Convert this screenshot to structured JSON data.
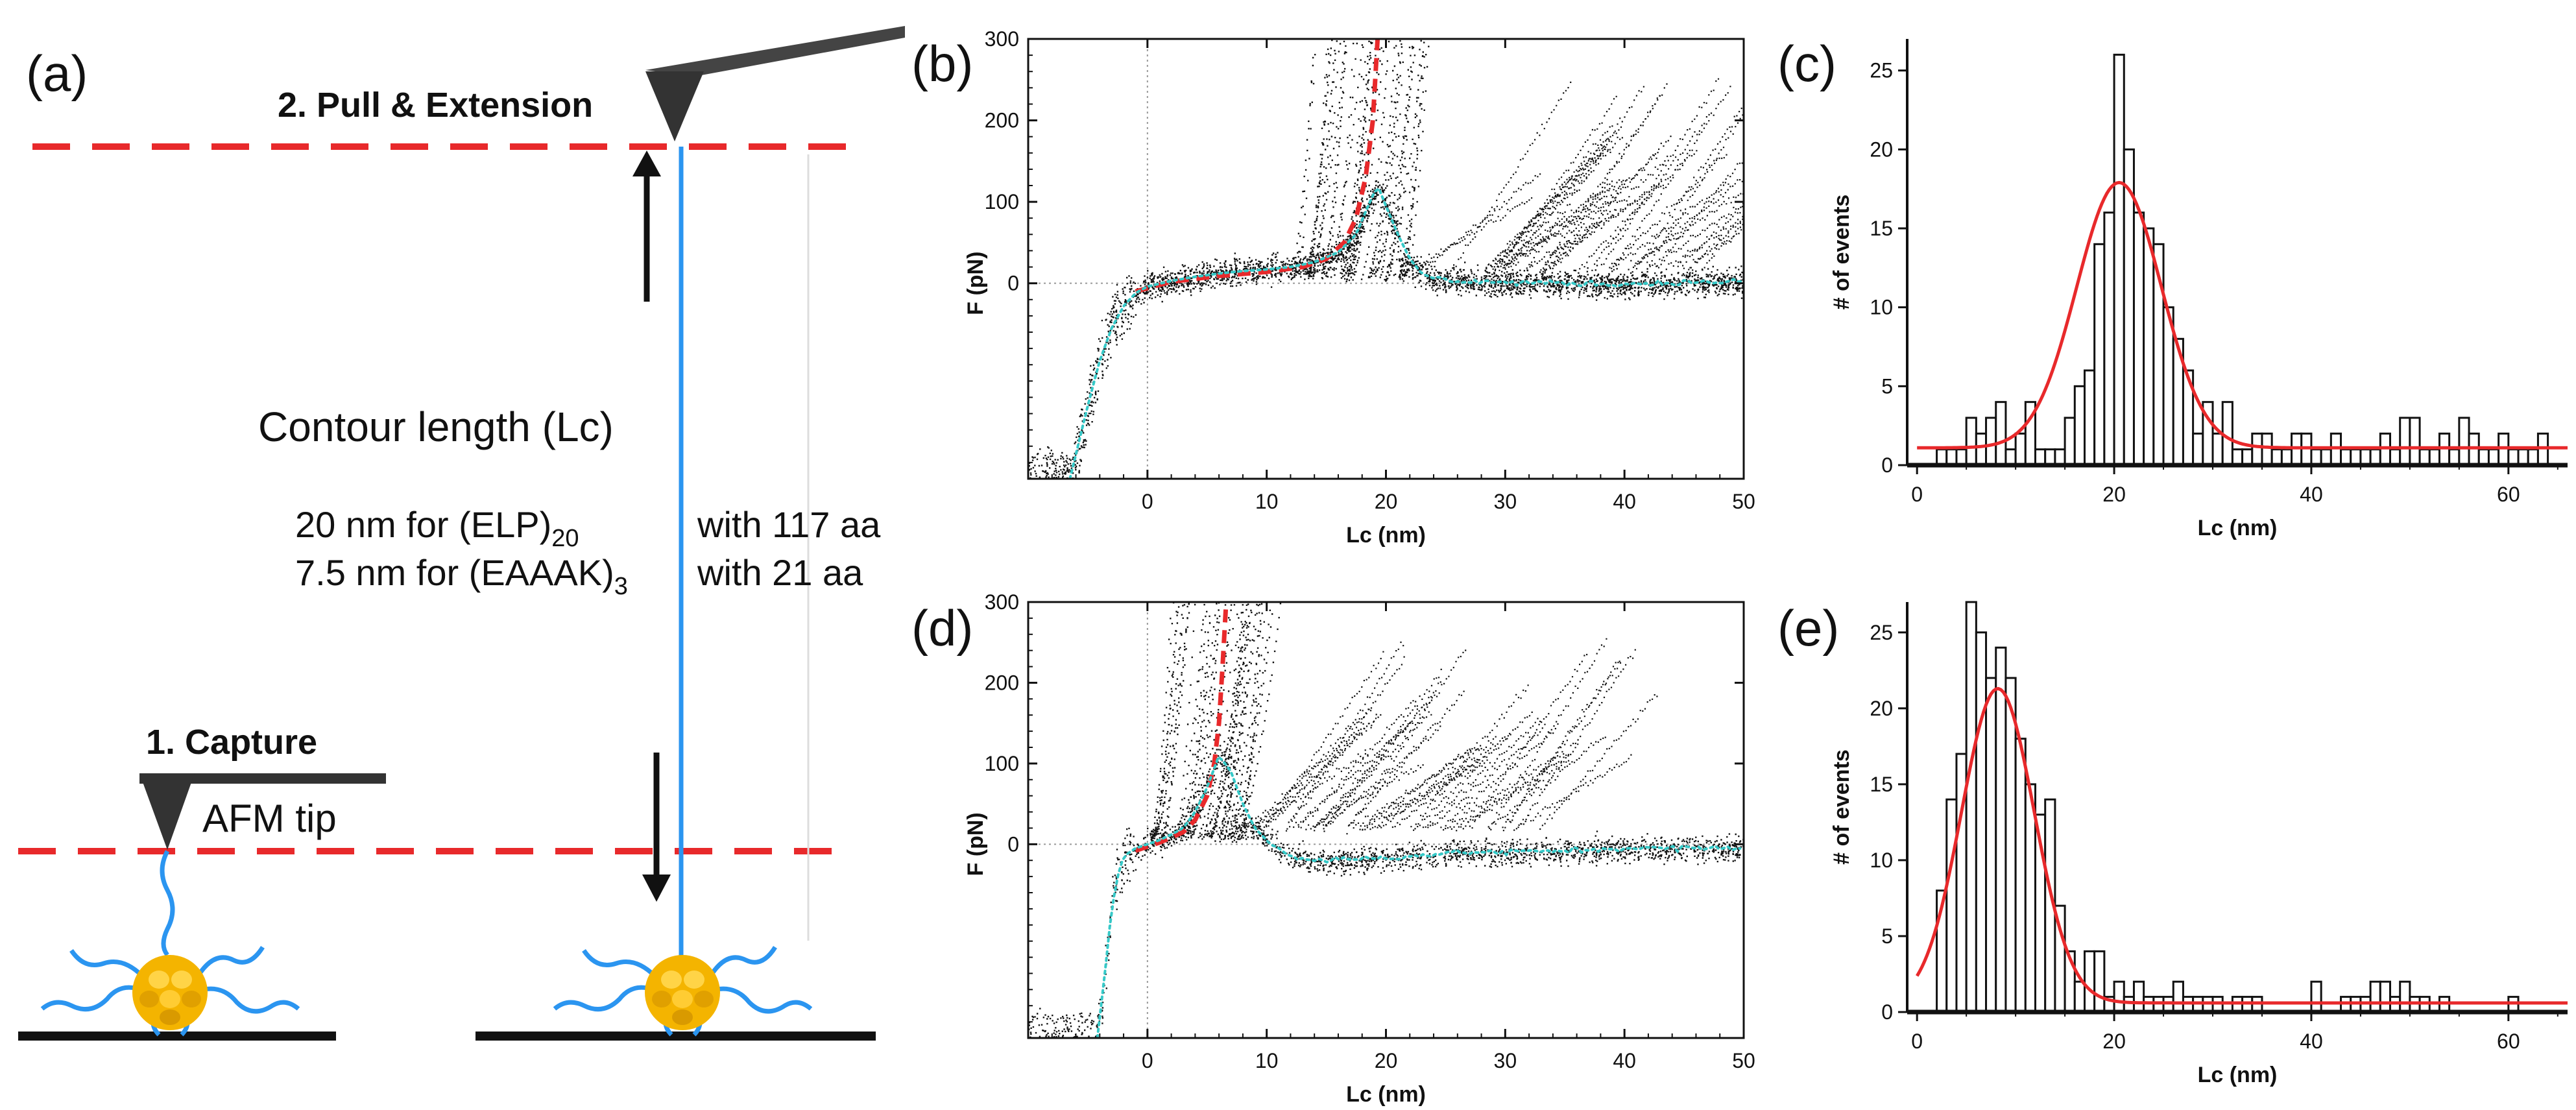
{
  "colors": {
    "red": "#e8292b",
    "blue": "#2b95f0",
    "cyan": "#36c9c8",
    "black": "#111111",
    "gold": "#f4b400"
  },
  "schematic": {
    "panel_label": "(a)",
    "step2_label": "2. Pull & Extension",
    "step1_label": "1. Capture",
    "tip_label": "AFM tip",
    "contour_label": "Contour length (Lc)",
    "lines": [
      {
        "text": "20  nm for (ELP)",
        "sub": "20",
        "tail": "with 117 aa"
      },
      {
        "text": "7.5 nm for (EAAAK)",
        "sub": "3",
        "tail": "with   21 aa"
      }
    ]
  },
  "chart_data": [
    {
      "id": "b",
      "panel_label": "(b)",
      "type": "scatter",
      "title": "",
      "xlabel": "Lc (nm)",
      "ylabel": "F (pN)",
      "xlim": [
        -10,
        50
      ],
      "ylim": [
        -240,
        300
      ],
      "xticks": [
        0,
        10,
        20,
        30,
        40,
        50
      ],
      "yticks": [
        0,
        100,
        200,
        300
      ],
      "fit_curve_x": [
        -1,
        2,
        6,
        10,
        13,
        15,
        16.5,
        17.5,
        18.3,
        18.9,
        19.3
      ],
      "fit_curve_y": [
        -10,
        2,
        9,
        14,
        20,
        30,
        50,
        80,
        130,
        200,
        300
      ],
      "mean_trace_x": [
        -6.5,
        -5,
        -4,
        -3,
        -2,
        -1,
        0,
        2,
        4,
        6,
        8,
        10,
        12,
        14,
        16,
        17.5,
        18.5,
        19.3,
        20,
        21,
        22,
        23,
        24,
        26,
        30,
        35,
        40,
        45,
        50
      ],
      "mean_trace_y": [
        -240,
        -150,
        -95,
        -55,
        -28,
        -12,
        -4,
        3,
        8,
        12,
        15,
        17,
        20,
        26,
        38,
        60,
        95,
        120,
        95,
        60,
        30,
        12,
        6,
        3,
        1,
        0,
        -1,
        1,
        2
      ]
    },
    {
      "id": "c",
      "panel_label": "(c)",
      "type": "bar",
      "title": "",
      "xlabel": "Lc (nm)",
      "ylabel": "# of events",
      "xlim": [
        -1,
        66
      ],
      "ylim": [
        0,
        27
      ],
      "xticks": [
        0,
        20,
        40,
        60
      ],
      "yticks": [
        0,
        5,
        10,
        15,
        20,
        25
      ],
      "bin_start": 2,
      "bin_width": 1,
      "values": [
        1,
        1,
        1,
        3,
        2,
        3,
        4,
        1,
        2,
        4,
        1,
        1,
        1,
        3,
        5,
        6,
        14,
        16,
        26,
        20,
        16,
        15,
        14,
        10,
        8,
        6,
        2,
        4,
        2,
        4,
        1,
        1,
        2,
        2,
        1,
        1,
        2,
        2,
        1,
        1,
        2,
        1,
        1,
        1,
        1,
        2,
        1,
        3,
        3,
        1,
        1,
        2,
        1,
        3,
        2,
        1,
        1,
        2,
        1,
        1,
        1,
        2,
        0,
        0
      ],
      "fit": {
        "type": "gaussian",
        "amplitude": 16.8,
        "center": 20.5,
        "sigma": 4.3,
        "baseline": 1.1
      }
    },
    {
      "id": "d",
      "panel_label": "(d)",
      "type": "scatter",
      "title": "",
      "xlabel": "Lc (nm)",
      "ylabel": "F (pN)",
      "xlim": [
        -10,
        50
      ],
      "ylim": [
        -240,
        300
      ],
      "xticks": [
        0,
        10,
        20,
        30,
        40,
        50
      ],
      "yticks": [
        0,
        100,
        200,
        300
      ],
      "fit_curve_x": [
        -1,
        1,
        3,
        4,
        5,
        5.6,
        6,
        6.3,
        6.6
      ],
      "fit_curve_y": [
        -8,
        2,
        15,
        30,
        60,
        100,
        150,
        220,
        300
      ],
      "mean_trace_x": [
        -4.2,
        -3.5,
        -3,
        -2.5,
        -2,
        -1,
        0,
        1,
        2,
        3,
        4,
        5,
        6,
        7,
        8,
        9,
        10,
        11,
        12,
        14,
        18,
        22,
        26,
        30,
        35,
        40,
        45,
        50
      ],
      "mean_trace_y": [
        -240,
        -150,
        -80,
        -40,
        -15,
        -5,
        0,
        5,
        12,
        20,
        40,
        70,
        110,
        90,
        50,
        20,
        5,
        -5,
        -15,
        -20,
        -18,
        -15,
        -10,
        -10,
        -8,
        -5,
        -5,
        -5
      ]
    },
    {
      "id": "e",
      "panel_label": "(e)",
      "type": "bar",
      "title": "",
      "xlabel": "Lc (nm)",
      "ylabel": "# of events",
      "xlim": [
        -1,
        66
      ],
      "ylim": [
        0,
        27
      ],
      "xticks": [
        0,
        20,
        40,
        60
      ],
      "yticks": [
        0,
        5,
        10,
        15,
        20,
        25
      ],
      "bin_start": 2,
      "bin_width": 1,
      "values": [
        8,
        14,
        17,
        27,
        25,
        22,
        24,
        22,
        18,
        15,
        13,
        14,
        7,
        4,
        2,
        4,
        4,
        1,
        2,
        1,
        2,
        1,
        1,
        1,
        2,
        1,
        1,
        1,
        1,
        0,
        1,
        1,
        1,
        0,
        0,
        0,
        0,
        0,
        2,
        0,
        0,
        1,
        1,
        1,
        2,
        2,
        1,
        2,
        1,
        1,
        0,
        1,
        0,
        0,
        0,
        0,
        0,
        0,
        1,
        0,
        0,
        0,
        0,
        0
      ],
      "fit": {
        "type": "gaussian",
        "amplitude": 20.7,
        "center": 8.2,
        "sigma": 3.7,
        "baseline": 0.6
      }
    }
  ]
}
